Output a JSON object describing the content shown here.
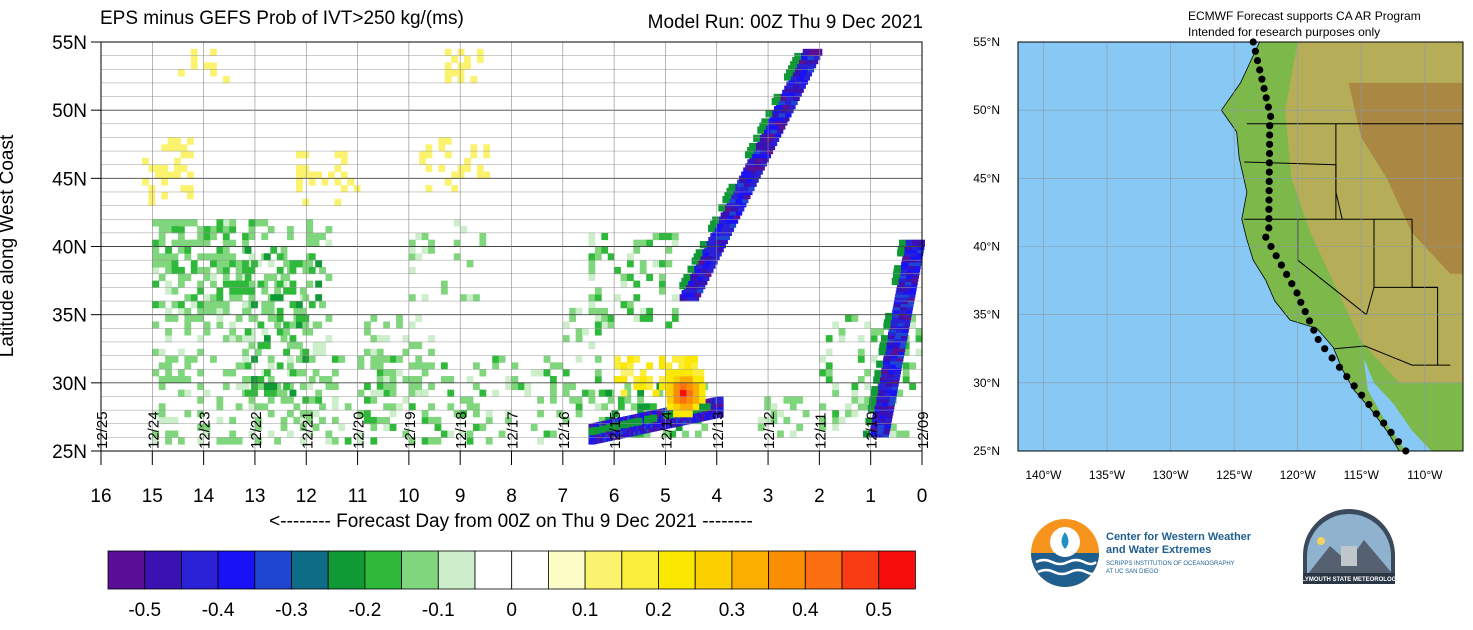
{
  "chart_data": [
    {
      "type": "heatmap",
      "title": "EPS minus GEFS Prob of IVT>250 kg/(ms)",
      "subtitle": "Model Run: 00Z Thu 9 Dec 2021",
      "xlabel": "<-------- Forecast Day from 00Z on Thu 9 Dec 2021 --------",
      "ylabel": "Latitude along West Coast",
      "xlim": [
        16,
        0
      ],
      "ylim": [
        25,
        55
      ],
      "x_ticks": [
        "16",
        "15",
        "14",
        "13",
        "12",
        "11",
        "10",
        "9",
        "8",
        "7",
        "6",
        "5",
        "4",
        "3",
        "2",
        "1",
        "0"
      ],
      "y_ticks": [
        "25N",
        "30N",
        "35N",
        "40N",
        "45N",
        "50N",
        "55N"
      ],
      "date_labels": [
        "12/25",
        "12/24",
        "12/23",
        "12/22",
        "12/21",
        "12/20",
        "12/19",
        "12/18",
        "12/17",
        "12/16",
        "12/15",
        "12/14",
        "12/13",
        "12/12",
        "12/11",
        "12/10",
        "12/09"
      ],
      "colorbar": {
        "colors": [
          "#5a0f96",
          "#3a12b4",
          "#2a20d6",
          "#1a12f7",
          "#1e46d2",
          "#0f6c86",
          "#0f9a36",
          "#2fb93a",
          "#7fd67d",
          "#cdeecb",
          "#ffffff",
          "#ffffff",
          "#fdfdc8",
          "#fbf36e",
          "#fbee3a",
          "#fbe800",
          "#fbcf00",
          "#fbae00",
          "#fb8e00",
          "#fb6e12",
          "#f83b12",
          "#f80d0d"
        ],
        "labels": [
          "-0.5",
          "-0.4",
          "-0.3",
          "-0.2",
          "-0.1",
          "0",
          "0.1",
          "0.2",
          "0.3",
          "0.4",
          "0.5"
        ]
      },
      "features": [
        {
          "name": "negative band",
          "value": -0.4,
          "day_start": 6.5,
          "day_end": 4.0,
          "lat_start": 26,
          "lat_end": 28
        },
        {
          "name": "negative streak",
          "value": -0.4,
          "day_start": 4.6,
          "day_end": 2.2,
          "lat_start": 36,
          "lat_end": 54
        },
        {
          "name": "positive max",
          "value": 0.5,
          "day": 4.7,
          "lat": 29
        },
        {
          "name": "negative streak",
          "value": -0.4,
          "day_start": 0.9,
          "day_end": 0.2,
          "lat_start": 26,
          "lat_end": 40
        }
      ]
    },
    {
      "type": "map",
      "header_lines": [
        "ECMWF Forecast supports CA AR Program",
        "Intended for research purposes only"
      ],
      "lat_ticks": [
        "55°N",
        "50°N",
        "45°N",
        "40°N",
        "35°N",
        "30°N",
        "25°N"
      ],
      "lon_ticks": [
        "140°W",
        "135°W",
        "130°W",
        "125°W",
        "120°W",
        "115°W",
        "110°W"
      ]
    }
  ],
  "logos": {
    "cw3e_line1": "Center for Western Weather",
    "cw3e_line2": "and Water Extremes",
    "cw3e_line3": "SCRIPPS INSTITUTION OF OCEANOGRAPHY",
    "cw3e_line4": "AT UC SAN DIEGO",
    "psu": "PLYMOUTH STATE METEOROLOGY"
  }
}
